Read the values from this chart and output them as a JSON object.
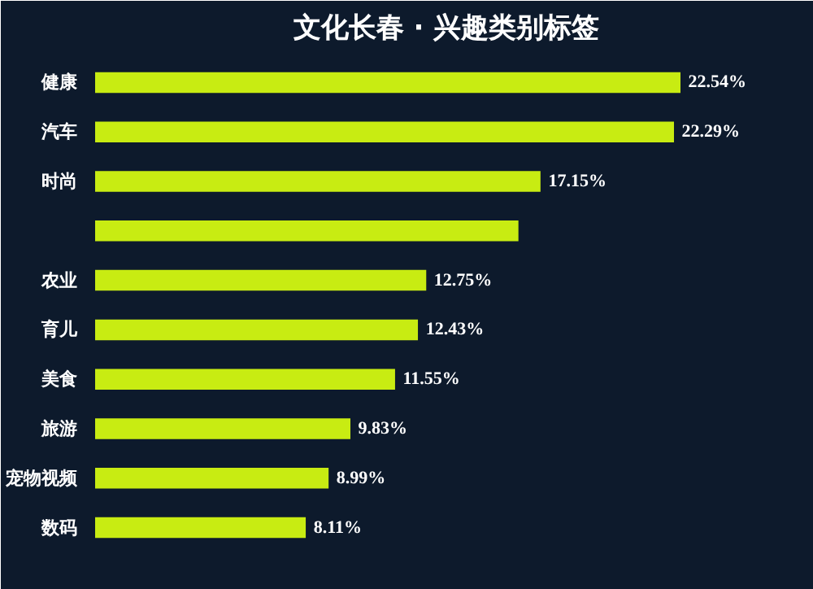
{
  "chart_data": {
    "type": "bar",
    "orientation": "horizontal",
    "title": "文化长春 · 兴趣类别标签",
    "categories": [
      "健康",
      "汽车",
      "时尚",
      null,
      "农业",
      "育儿",
      "美食",
      "旅游",
      "宠物视频",
      "数码"
    ],
    "values": [
      22.54,
      22.29,
      17.15,
      16.3,
      12.75,
      12.43,
      11.55,
      9.83,
      8.99,
      8.11
    ],
    "value_labels": [
      "22.54%",
      "22.29%",
      "17.15%",
      null,
      "12.75%",
      "12.43%",
      "11.55%",
      "9.83%",
      "8.99%",
      "8.11%"
    ],
    "color": "#c8ec12",
    "tick_labels": "y",
    "grid": false
  }
}
